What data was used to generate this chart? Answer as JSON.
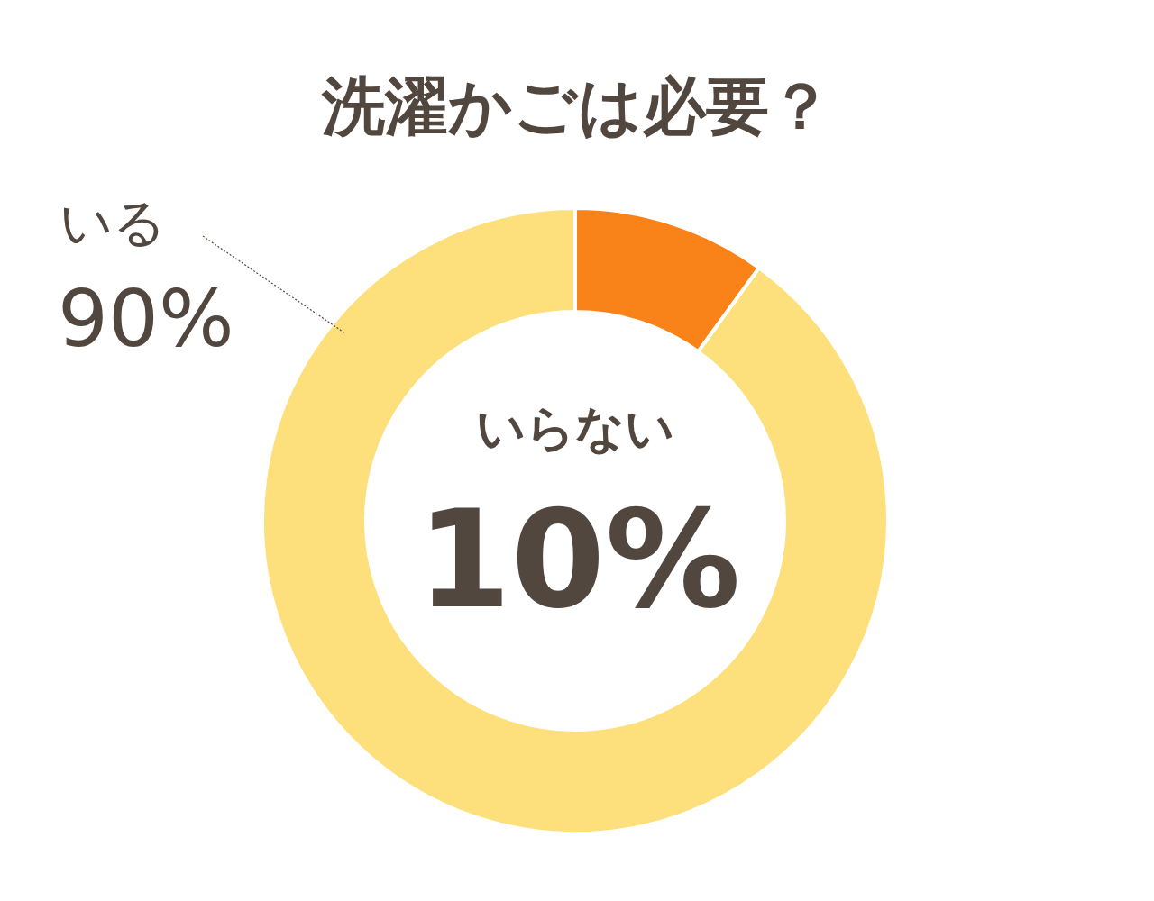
{
  "chart_data": {
    "type": "donut",
    "title": "洗濯かごは必要？",
    "categories": [
      "いらない",
      "いる"
    ],
    "values": [
      10,
      90
    ],
    "colors": [
      "#f98318",
      "#fde07c"
    ],
    "value_labels": [
      "10%",
      "90%"
    ]
  }
}
